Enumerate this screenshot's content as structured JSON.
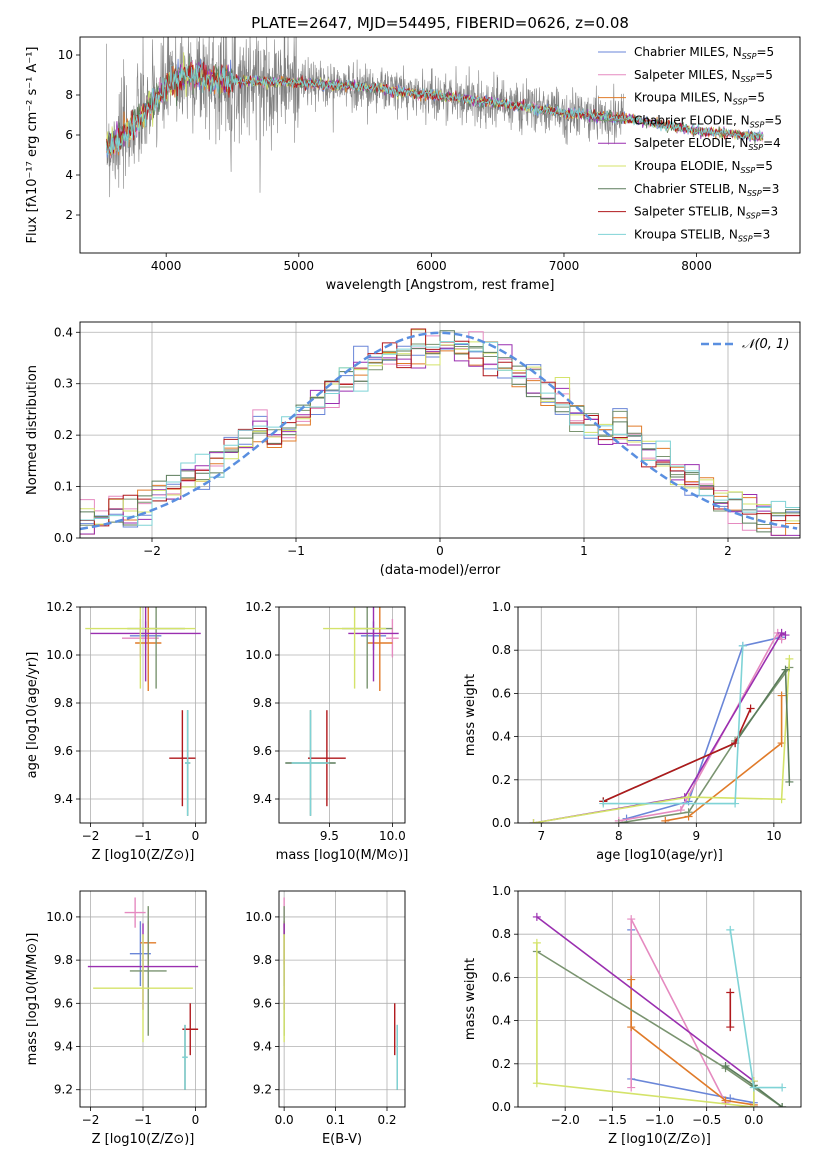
{
  "figure_title": "PLATE=2647, MJD=54495, FIBERID=0626, z=0.08",
  "colors": {
    "Chabrier MILES": "#6a86d8",
    "Salpeter MILES": "#e58ac0",
    "Kroupa MILES": "#e07b2a",
    "Chabrier ELODIE": "#7a9470",
    "Salpeter ELODIE": "#9a2fb0",
    "Kroupa ELODIE": "#d4e36a",
    "Chabrier STELIB": "#5b7c5b",
    "Salpeter STELIB": "#b0181c",
    "Kroupa STELIB": "#7fd3d6",
    "data": "#808080",
    "normal": "#5a8fe0",
    "grid": "#b0b0b0"
  },
  "chart_data": [
    {
      "id": "spectrum",
      "type": "line",
      "title": "PLATE=2647, MJD=54495, FIBERID=0626, z=0.08",
      "xlabel": "wavelength [Angstrom, rest frame]",
      "ylabel": "Flux [fλ10⁻¹⁷ erg cm⁻² s⁻¹ A⁻¹]",
      "xlim": [
        3350,
        8780
      ],
      "ylim": [
        0.1,
        10.9
      ],
      "xticks": [
        4000,
        5000,
        6000,
        7000,
        8000
      ],
      "yticks": [
        2,
        4,
        6,
        8,
        10
      ],
      "grid": false,
      "legend_position": "right",
      "legend": [
        {
          "name": "Chabrier MILES",
          "nssp": "N_SSP=5"
        },
        {
          "name": "Salpeter MILES",
          "nssp": "N_SSP=5"
        },
        {
          "name": "Kroupa MILES",
          "nssp": "N_SSP=5"
        },
        {
          "name": "Chabrier ELODIE",
          "nssp": "N_SSP=5"
        },
        {
          "name": "Salpeter ELODIE",
          "nssp": "N_SSP=4"
        },
        {
          "name": "Kroupa ELODIE",
          "nssp": "N_SSP=5"
        },
        {
          "name": "Chabrier STELIB",
          "nssp": "N_SSP=3"
        },
        {
          "name": "Salpeter STELIB",
          "nssp": "N_SSP=3"
        },
        {
          "name": "Kroupa STELIB",
          "nssp": "N_SSP=3"
        }
      ],
      "model_continuum": {
        "x": [
          3550,
          3600,
          3700,
          3800,
          3900,
          4000,
          4100,
          4200,
          4300,
          4400,
          4600,
          5000,
          5500,
          6000,
          6500,
          7000,
          7500,
          8000,
          8500
        ],
        "y": [
          5.5,
          5.6,
          6.1,
          6.8,
          7.6,
          8.4,
          8.9,
          9.0,
          8.9,
          8.7,
          8.7,
          8.6,
          8.4,
          8.0,
          7.6,
          7.1,
          6.8,
          6.2,
          5.9
        ]
      },
      "noise_scale": 1.3
    },
    {
      "id": "residuals",
      "type": "step",
      "xlabel": "(data-model)/error",
      "ylabel": "Normed distribution",
      "xlim": [
        -2.5,
        2.5
      ],
      "ylim": [
        0,
        0.42
      ],
      "xticks": [
        -2,
        -1,
        0,
        1,
        2
      ],
      "yticks": [
        0.0,
        0.1,
        0.2,
        0.3,
        0.4
      ],
      "grid": true,
      "legend_position": "top-right",
      "reference_label": "𝒩(0, 1)",
      "bins": 50
    },
    {
      "id": "age_vs_Z",
      "type": "scatter",
      "xlabel": "Z [log10(Z/Z⊙)]",
      "ylabel": "age  [log10(age/yr)]",
      "xlim": [
        -2.2,
        0.2
      ],
      "ylim": [
        9.3,
        10.2
      ],
      "xticks": [
        -2,
        -1,
        0
      ],
      "yticks": [
        9.4,
        9.6,
        9.8,
        10.0,
        10.2
      ],
      "grid": true,
      "points": [
        {
          "s": "Chabrier MILES",
          "x": -0.95,
          "xerr": 0.3,
          "y": 10.08,
          "yerr": 0.06
        },
        {
          "s": "Salpeter MILES",
          "x": -1.05,
          "xerr": 0.35,
          "y": 10.07,
          "yerr": 0.08
        },
        {
          "s": "Kroupa MILES",
          "x": -0.9,
          "xerr": 0.25,
          "y": 10.05,
          "yerr": 0.2
        },
        {
          "s": "Chabrier ELODIE",
          "x": -0.75,
          "xerr": 0.55,
          "y": 10.11,
          "yerr": 0.25
        },
        {
          "s": "Salpeter ELODIE",
          "x": -0.95,
          "xerr": 1.05,
          "y": 10.09,
          "yerr": 0.2
        },
        {
          "s": "Kroupa ELODIE",
          "x": -1.05,
          "xerr": 1.05,
          "y": 10.11,
          "yerr": 0.25
        },
        {
          "s": "Chabrier STELIB",
          "x": -0.15,
          "xerr": 0.05,
          "y": 9.55,
          "yerr": 0.22
        },
        {
          "s": "Salpeter STELIB",
          "x": -0.25,
          "xerr": 0.25,
          "y": 9.57,
          "yerr": 0.2
        },
        {
          "s": "Kroupa STELIB",
          "x": -0.15,
          "xerr": 0.05,
          "y": 9.55,
          "yerr": 0.22
        }
      ]
    },
    {
      "id": "age_vs_mass",
      "type": "scatter",
      "xlabel": "mass [log10(M/M⊙)]",
      "ylabel": "",
      "xlim": [
        9.1,
        10.1
      ],
      "ylim": [
        9.3,
        10.2
      ],
      "xticks": [
        9.5,
        10.0
      ],
      "yticks": [
        9.4,
        9.6,
        9.8,
        10.0,
        10.2
      ],
      "grid": true,
      "points": [
        {
          "s": "Chabrier MILES",
          "x": 9.85,
          "xerr": 0.1,
          "y": 10.08,
          "yerr": 0.06
        },
        {
          "s": "Salpeter MILES",
          "x": 10.0,
          "xerr": 0.05,
          "y": 10.07,
          "yerr": 0.08
        },
        {
          "s": "Kroupa MILES",
          "x": 9.9,
          "xerr": 0.1,
          "y": 10.05,
          "yerr": 0.2
        },
        {
          "s": "Chabrier ELODIE",
          "x": 9.8,
          "xerr": 0.2,
          "y": 10.11,
          "yerr": 0.25
        },
        {
          "s": "Salpeter ELODIE",
          "x": 9.85,
          "xerr": 0.2,
          "y": 10.09,
          "yerr": 0.2
        },
        {
          "s": "Kroupa ELODIE",
          "x": 9.7,
          "xerr": 0.25,
          "y": 10.11,
          "yerr": 0.25
        },
        {
          "s": "Chabrier STELIB",
          "x": 9.35,
          "xerr": 0.2,
          "y": 9.55,
          "yerr": 0.22
        },
        {
          "s": "Salpeter STELIB",
          "x": 9.48,
          "xerr": 0.15,
          "y": 9.57,
          "yerr": 0.2
        },
        {
          "s": "Kroupa STELIB",
          "x": 9.35,
          "xerr": 0.15,
          "y": 9.55,
          "yerr": 0.22
        }
      ]
    },
    {
      "id": "weight_vs_age",
      "type": "line",
      "xlabel": "age  [log10(age/yr)]",
      "ylabel": "mass weight",
      "xlim": [
        6.7,
        10.35
      ],
      "ylim": [
        0,
        1.0
      ],
      "xticks": [
        7,
        8,
        9,
        10
      ],
      "yticks": [
        0.0,
        0.2,
        0.4,
        0.6,
        0.8,
        1.0
      ],
      "grid": true,
      "series": [
        {
          "s": "Chabrier MILES",
          "x": [
            8.1,
            8.9,
            9.6,
            10.1
          ],
          "y": [
            0.02,
            0.1,
            0.82,
            0.86
          ]
        },
        {
          "s": "Salpeter MILES",
          "x": [
            8.0,
            8.8,
            10.05,
            10.1
          ],
          "y": [
            0.01,
            0.06,
            0.88,
            0.85
          ]
        },
        {
          "s": "Kroupa MILES",
          "x": [
            8.6,
            8.9,
            10.1,
            10.1
          ],
          "y": [
            0.01,
            0.03,
            0.37,
            0.59
          ]
        },
        {
          "s": "Chabrier ELODIE",
          "x": [
            8.0,
            8.9,
            9.5,
            10.2
          ],
          "y": [
            0.0,
            0.05,
            0.38,
            0.72
          ]
        },
        {
          "s": "Salpeter ELODIE",
          "x": [
            6.9,
            8.85,
            10.1,
            10.15
          ],
          "y": [
            0.0,
            0.12,
            0.88,
            0.87
          ]
        },
        {
          "s": "Kroupa ELODIE",
          "x": [
            6.9,
            8.9,
            10.1,
            10.2
          ],
          "y": [
            0.0,
            0.12,
            0.11,
            0.76
          ]
        },
        {
          "s": "Chabrier STELIB",
          "x": [
            7.8,
            9.5,
            10.15,
            10.2
          ],
          "y": [
            0.1,
            0.37,
            0.71,
            0.19
          ]
        },
        {
          "s": "Salpeter STELIB",
          "x": [
            7.8,
            9.5,
            9.7
          ],
          "y": [
            0.1,
            0.37,
            0.53
          ]
        },
        {
          "s": "Kroupa STELIB",
          "x": [
            7.8,
            9.5,
            9.6
          ],
          "y": [
            0.09,
            0.09,
            0.82
          ]
        }
      ]
    },
    {
      "id": "mass_vs_Z",
      "type": "scatter",
      "xlabel": "Z [log10(Z/Z⊙)]",
      "ylabel": "mass [log10(M/M⊙)]",
      "xlim": [
        -2.2,
        0.2
      ],
      "ylim": [
        9.12,
        10.12
      ],
      "xticks": [
        -2,
        -1,
        0
      ],
      "yticks": [
        9.2,
        9.4,
        9.6,
        9.8,
        10.0
      ],
      "grid": true,
      "points": [
        {
          "s": "Chabrier MILES",
          "x": -1.05,
          "xerr": 0.2,
          "y": 9.83,
          "yerr": 0.15
        },
        {
          "s": "Salpeter MILES",
          "x": -1.15,
          "xerr": 0.2,
          "y": 10.02,
          "yerr": 0.07
        },
        {
          "s": "Kroupa MILES",
          "x": -0.9,
          "xerr": 0.15,
          "y": 9.88,
          "yerr": 0.1
        },
        {
          "s": "Chabrier ELODIE",
          "x": -0.9,
          "xerr": 0.35,
          "y": 9.75,
          "yerr": 0.3
        },
        {
          "s": "Salpeter ELODIE",
          "x": -1.0,
          "xerr": 1.05,
          "y": 9.77,
          "yerr": 0.2
        },
        {
          "s": "Kroupa ELODIE",
          "x": -1.0,
          "xerr": 0.95,
          "y": 9.67,
          "yerr": 0.25
        },
        {
          "s": "Chabrier STELIB",
          "x": -0.2,
          "xerr": 0.05,
          "y": 9.35,
          "yerr": 0.15
        },
        {
          "s": "Salpeter STELIB",
          "x": -0.1,
          "xerr": 0.15,
          "y": 9.48,
          "yerr": 0.12
        },
        {
          "s": "Kroupa STELIB",
          "x": -0.2,
          "xerr": 0.05,
          "y": 9.35,
          "yerr": 0.15
        }
      ]
    },
    {
      "id": "mass_vs_ebv",
      "type": "scatter",
      "xlabel": "E(B-V)",
      "ylabel": "",
      "xlim": [
        -0.01,
        0.235
      ],
      "ylim": [
        9.12,
        10.12
      ],
      "xticks": [
        0.0,
        0.1,
        0.2
      ],
      "yticks": [
        9.2,
        9.4,
        9.6,
        9.8,
        10.0
      ],
      "grid": true,
      "points": [
        {
          "s": "Chabrier MILES",
          "x": 0.0,
          "xerr": 0.0,
          "y": 9.83,
          "yerr": 0.15
        },
        {
          "s": "Salpeter MILES",
          "x": 0.0,
          "xerr": 0.0,
          "y": 10.02,
          "yerr": 0.07
        },
        {
          "s": "Kroupa MILES",
          "x": 0.0,
          "xerr": 0.0,
          "y": 9.88,
          "yerr": 0.1
        },
        {
          "s": "Chabrier ELODIE",
          "x": 0.0,
          "xerr": 0.0,
          "y": 9.75,
          "yerr": 0.3
        },
        {
          "s": "Salpeter ELODIE",
          "x": 0.0,
          "xerr": 0.0,
          "y": 9.77,
          "yerr": 0.2
        },
        {
          "s": "Kroupa ELODIE",
          "x": 0.0,
          "xerr": 0.0,
          "y": 9.67,
          "yerr": 0.25
        },
        {
          "s": "Chabrier STELIB",
          "x": 0.22,
          "xerr": 0.0,
          "y": 9.35,
          "yerr": 0.15
        },
        {
          "s": "Salpeter STELIB",
          "x": 0.215,
          "xerr": 0.0,
          "y": 9.48,
          "yerr": 0.12
        },
        {
          "s": "Kroupa STELIB",
          "x": 0.22,
          "xerr": 0.0,
          "y": 9.35,
          "yerr": 0.15
        }
      ]
    },
    {
      "id": "weight_vs_Z",
      "type": "line",
      "xlabel": "Z [log10(Z/Z⊙)]",
      "ylabel": "mass weight",
      "xlim": [
        -2.5,
        0.5
      ],
      "ylim": [
        0,
        1.0
      ],
      "xticks": [
        -2.0,
        -1.5,
        -1.0,
        -0.5,
        0.0
      ],
      "yticks": [
        0.0,
        0.2,
        0.4,
        0.6,
        0.8,
        1.0
      ],
      "grid": true,
      "series": [
        {
          "s": "Chabrier MILES",
          "x": [
            -1.3,
            -1.3,
            -0.25,
            0.0,
            0.0
          ],
          "y": [
            0.82,
            0.13,
            0.04,
            0.02,
            0.0
          ]
        },
        {
          "s": "Salpeter MILES",
          "x": [
            -1.3,
            -1.3,
            -0.3
          ],
          "y": [
            0.09,
            0.87,
            0.02
          ]
        },
        {
          "s": "Kroupa MILES",
          "x": [
            -1.3,
            -1.3,
            -0.3,
            0.0
          ],
          "y": [
            0.59,
            0.37,
            0.03,
            0.01
          ]
        },
        {
          "s": "Chabrier ELODIE",
          "x": [
            -2.3,
            -0.3,
            0.3
          ],
          "y": [
            0.72,
            0.18,
            0.0
          ]
        },
        {
          "s": "Salpeter ELODIE",
          "x": [
            -2.3,
            0.0,
            0.0
          ],
          "y": [
            0.88,
            0.12,
            0.0
          ]
        },
        {
          "s": "Kroupa ELODIE",
          "x": [
            -2.3,
            -2.3,
            0.0,
            0.0
          ],
          "y": [
            0.76,
            0.11,
            0.0,
            0.12
          ]
        },
        {
          "s": "Chabrier STELIB",
          "x": [
            -0.3,
            0.0,
            0.3
          ],
          "y": [
            0.19,
            0.1,
            0.0
          ]
        },
        {
          "s": "Salpeter STELIB",
          "x": [
            -0.25,
            -0.25
          ],
          "y": [
            0.53,
            0.37
          ]
        },
        {
          "s": "Kroupa STELIB",
          "x": [
            -0.25,
            0.0,
            0.3
          ],
          "y": [
            0.82,
            0.09,
            0.09
          ]
        }
      ]
    }
  ]
}
